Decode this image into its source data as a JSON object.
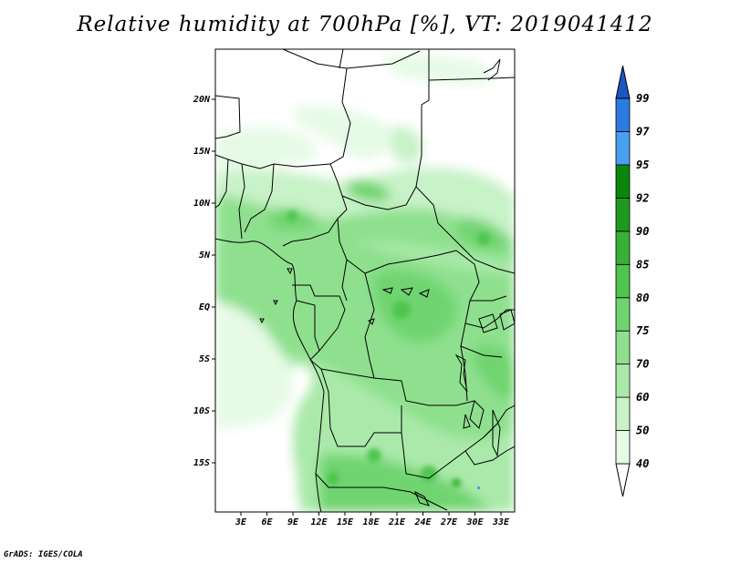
{
  "title": "Relative humidity at 700hPa [%], VT: 2019041412",
  "credit": "GrADS: IGES/COLA",
  "map": {
    "lon_range": [
      0,
      35
    ],
    "lat_range": [
      -20,
      25
    ],
    "lat_ticks": [
      "20N",
      "15N",
      "10N",
      "5N",
      "EQ",
      "5S",
      "10S",
      "15S"
    ],
    "lon_ticks": [
      "3E",
      "6E",
      "9E",
      "12E",
      "15E",
      "18E",
      "21E",
      "24E",
      "27E",
      "30E",
      "33E"
    ]
  },
  "colorbar": {
    "levels": [
      "40",
      "50",
      "60",
      "70",
      "75",
      "80",
      "85",
      "90",
      "92",
      "95",
      "97",
      "99"
    ],
    "colors": [
      "#ffffff",
      "#e6fae6",
      "#c8f2c8",
      "#aae9aa",
      "#8ee08e",
      "#6fd46f",
      "#4fc54f",
      "#36b036",
      "#1d9a1d",
      "#0a870a",
      "#4aa0f0",
      "#2a7ae0",
      "#1a55c0"
    ]
  }
}
